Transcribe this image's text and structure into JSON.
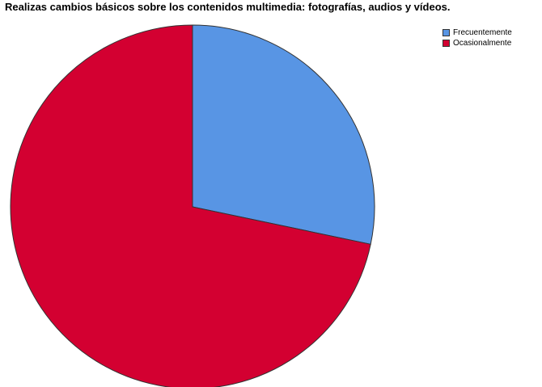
{
  "chart_data": {
    "type": "pie",
    "title": "Realizas cambios básicos sobre los contenidos multimedia: fotografías, audios y vídeos.",
    "slices": [
      {
        "label": "Frecuentemente",
        "value": 28.3,
        "color": "#5895E4"
      },
      {
        "label": "Ocasionalmente",
        "value": 71.7,
        "color": "#D30031"
      }
    ],
    "start_angle_deg": 0,
    "direction": "clockwise",
    "legend_position": "top-right",
    "stroke_color": "#333333"
  }
}
